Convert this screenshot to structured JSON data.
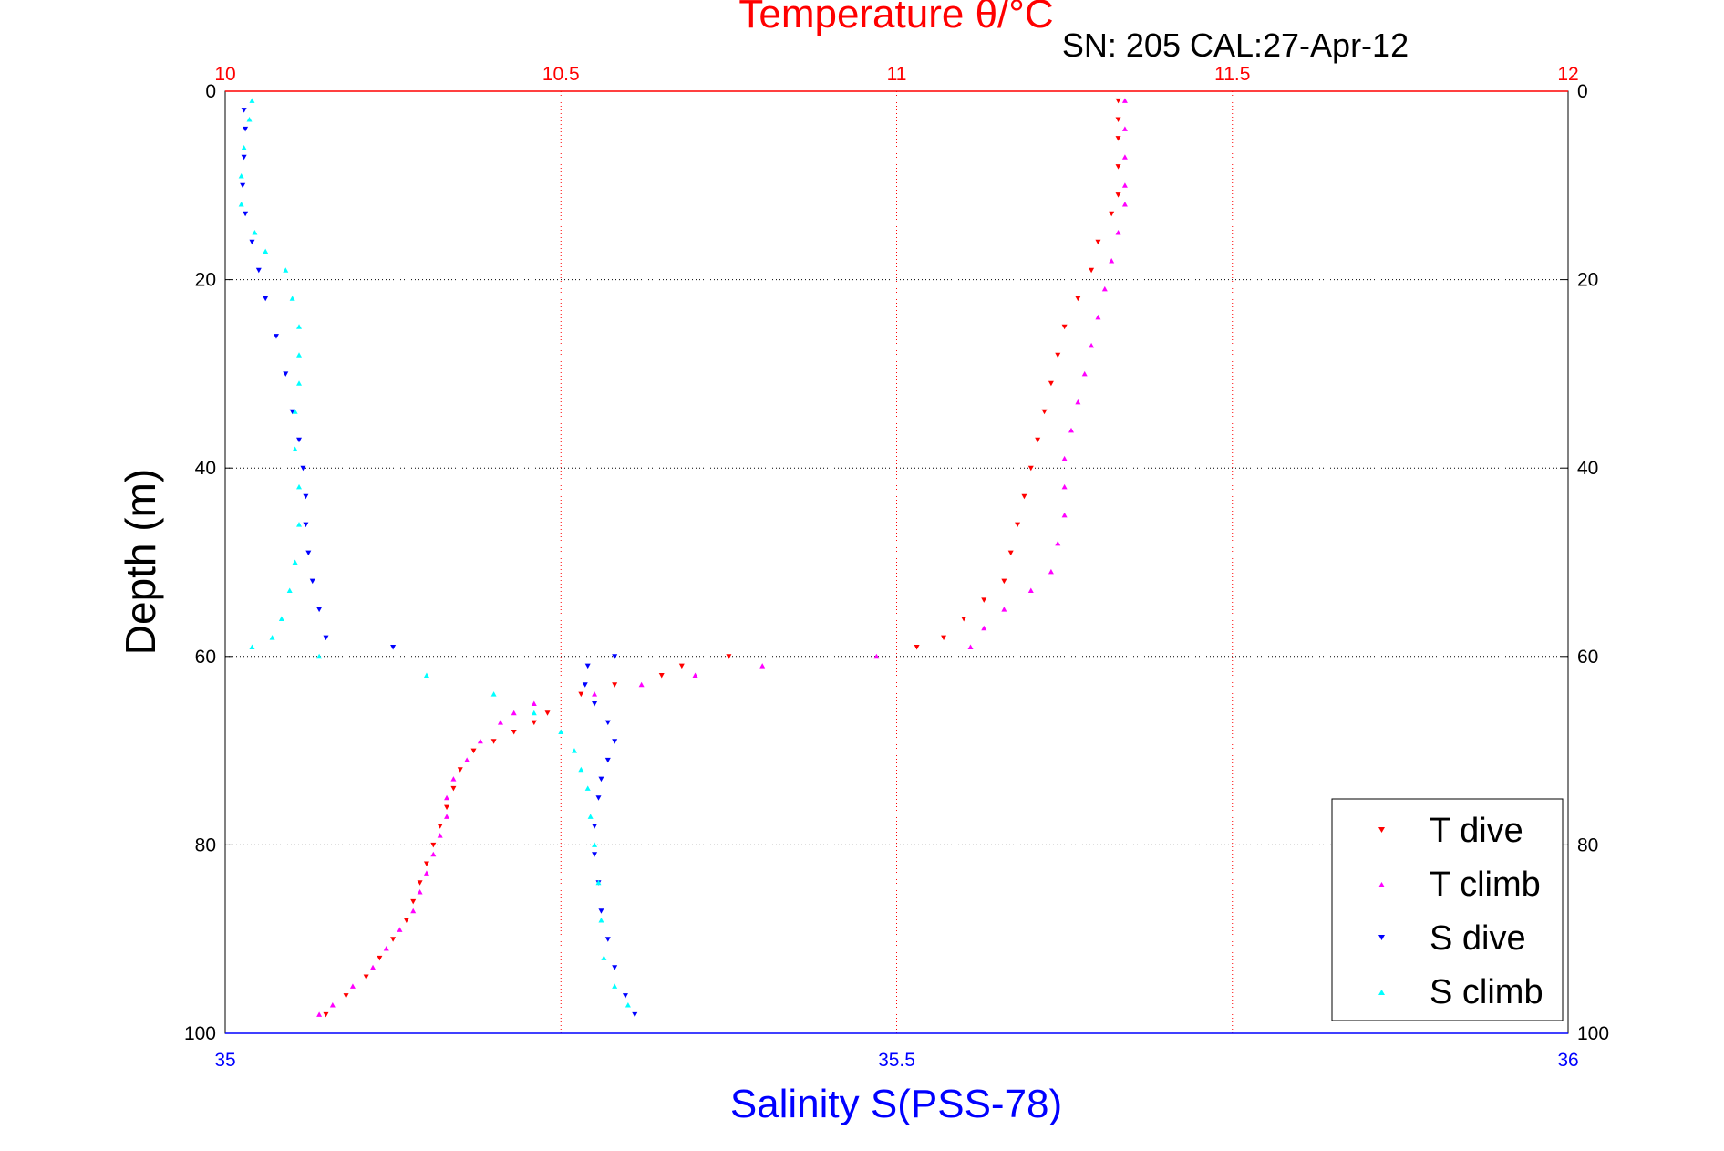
{
  "colors": {
    "temperature_axis": "#ff0000",
    "salinity_axis": "#0000ff",
    "t_dive": "#ff0000",
    "t_climb": "#ff00ff",
    "s_dive": "#0000ff",
    "s_climb": "#00ffff"
  },
  "chart_data": {
    "type": "scatter",
    "title": "Temperature θ/°C",
    "subtitle": "SN: 205  CAL:27-Apr-12",
    "ylabel": "Depth (m)",
    "top_xlabel": "Temperature θ/°C",
    "bottom_xlabel": "Salinity S(PSS-78)",
    "ylim": [
      0,
      100
    ],
    "y_reversed": true,
    "y_ticks": [
      0,
      20,
      40,
      60,
      80,
      100
    ],
    "top_axis": {
      "lim": [
        10,
        12
      ],
      "ticks": [
        "10",
        "10.5",
        "11",
        "11.5",
        "12"
      ]
    },
    "bottom_axis": {
      "lim": [
        35,
        36
      ],
      "ticks": [
        "35",
        "35.5",
        "36"
      ]
    },
    "grid": true,
    "legend_position": "bottom-right",
    "series": [
      {
        "name": "T dive",
        "axis": "temperature",
        "color": "#ff0000",
        "marker": "triangle-down",
        "points": [
          [
            11.33,
            1
          ],
          [
            11.33,
            3
          ],
          [
            11.33,
            5
          ],
          [
            11.33,
            8
          ],
          [
            11.33,
            11
          ],
          [
            11.32,
            13
          ],
          [
            11.3,
            16
          ],
          [
            11.29,
            19
          ],
          [
            11.27,
            22
          ],
          [
            11.25,
            25
          ],
          [
            11.24,
            28
          ],
          [
            11.23,
            31
          ],
          [
            11.22,
            34
          ],
          [
            11.21,
            37
          ],
          [
            11.2,
            40
          ],
          [
            11.19,
            43
          ],
          [
            11.18,
            46
          ],
          [
            11.17,
            49
          ],
          [
            11.16,
            52
          ],
          [
            11.13,
            54
          ],
          [
            11.1,
            56
          ],
          [
            11.07,
            58
          ],
          [
            11.03,
            59
          ],
          [
            10.75,
            60
          ],
          [
            10.68,
            61
          ],
          [
            10.65,
            62
          ],
          [
            10.58,
            63
          ],
          [
            10.53,
            64
          ],
          [
            10.48,
            66
          ],
          [
            10.46,
            67
          ],
          [
            10.43,
            68
          ],
          [
            10.4,
            69
          ],
          [
            10.37,
            70
          ],
          [
            10.35,
            72
          ],
          [
            10.34,
            74
          ],
          [
            10.33,
            76
          ],
          [
            10.32,
            78
          ],
          [
            10.31,
            80
          ],
          [
            10.3,
            82
          ],
          [
            10.29,
            84
          ],
          [
            10.28,
            86
          ],
          [
            10.27,
            88
          ],
          [
            10.25,
            90
          ],
          [
            10.23,
            92
          ],
          [
            10.21,
            94
          ],
          [
            10.18,
            96
          ],
          [
            10.15,
            98
          ]
        ]
      },
      {
        "name": "T climb",
        "axis": "temperature",
        "color": "#ff00ff",
        "marker": "triangle-up",
        "points": [
          [
            11.34,
            1
          ],
          [
            11.34,
            4
          ],
          [
            11.34,
            7
          ],
          [
            11.34,
            10
          ],
          [
            11.34,
            12
          ],
          [
            11.33,
            15
          ],
          [
            11.32,
            18
          ],
          [
            11.31,
            21
          ],
          [
            11.3,
            24
          ],
          [
            11.29,
            27
          ],
          [
            11.28,
            30
          ],
          [
            11.27,
            33
          ],
          [
            11.26,
            36
          ],
          [
            11.25,
            39
          ],
          [
            11.25,
            42
          ],
          [
            11.25,
            45
          ],
          [
            11.24,
            48
          ],
          [
            11.23,
            51
          ],
          [
            11.2,
            53
          ],
          [
            11.16,
            55
          ],
          [
            11.13,
            57
          ],
          [
            11.11,
            59
          ],
          [
            10.97,
            60
          ],
          [
            10.8,
            61
          ],
          [
            10.7,
            62
          ],
          [
            10.62,
            63
          ],
          [
            10.55,
            64
          ],
          [
            10.46,
            65
          ],
          [
            10.43,
            66
          ],
          [
            10.41,
            67
          ],
          [
            10.38,
            69
          ],
          [
            10.36,
            71
          ],
          [
            10.34,
            73
          ],
          [
            10.33,
            75
          ],
          [
            10.33,
            77
          ],
          [
            10.32,
            79
          ],
          [
            10.31,
            81
          ],
          [
            10.3,
            83
          ],
          [
            10.29,
            85
          ],
          [
            10.28,
            87
          ],
          [
            10.26,
            89
          ],
          [
            10.24,
            91
          ],
          [
            10.22,
            93
          ],
          [
            10.19,
            95
          ],
          [
            10.16,
            97
          ],
          [
            10.14,
            98
          ]
        ]
      },
      {
        "name": "S dive",
        "axis": "salinity",
        "color": "#0000ff",
        "marker": "triangle-down",
        "points": [
          [
            35.014,
            2
          ],
          [
            35.015,
            4
          ],
          [
            35.014,
            7
          ],
          [
            35.013,
            10
          ],
          [
            35.015,
            13
          ],
          [
            35.02,
            16
          ],
          [
            35.025,
            19
          ],
          [
            35.03,
            22
          ],
          [
            35.038,
            26
          ],
          [
            35.045,
            30
          ],
          [
            35.05,
            34
          ],
          [
            35.055,
            37
          ],
          [
            35.058,
            40
          ],
          [
            35.06,
            43
          ],
          [
            35.06,
            46
          ],
          [
            35.062,
            49
          ],
          [
            35.065,
            52
          ],
          [
            35.07,
            55
          ],
          [
            35.075,
            58
          ],
          [
            35.125,
            59
          ],
          [
            35.29,
            60
          ],
          [
            35.27,
            61
          ],
          [
            35.268,
            63
          ],
          [
            35.275,
            65
          ],
          [
            35.285,
            67
          ],
          [
            35.29,
            69
          ],
          [
            35.285,
            71
          ],
          [
            35.28,
            73
          ],
          [
            35.278,
            75
          ],
          [
            35.275,
            78
          ],
          [
            35.275,
            81
          ],
          [
            35.278,
            84
          ],
          [
            35.28,
            87
          ],
          [
            35.285,
            90
          ],
          [
            35.29,
            93
          ],
          [
            35.298,
            96
          ],
          [
            35.305,
            98
          ]
        ]
      },
      {
        "name": "S climb",
        "axis": "salinity",
        "color": "#00ffff",
        "marker": "triangle-up",
        "points": [
          [
            35.02,
            1
          ],
          [
            35.018,
            3
          ],
          [
            35.014,
            6
          ],
          [
            35.012,
            9
          ],
          [
            35.012,
            12
          ],
          [
            35.022,
            15
          ],
          [
            35.03,
            17
          ],
          [
            35.045,
            19
          ],
          [
            35.05,
            22
          ],
          [
            35.055,
            25
          ],
          [
            35.055,
            28
          ],
          [
            35.055,
            31
          ],
          [
            35.052,
            34
          ],
          [
            35.052,
            38
          ],
          [
            35.055,
            42
          ],
          [
            35.055,
            46
          ],
          [
            35.052,
            50
          ],
          [
            35.048,
            53
          ],
          [
            35.042,
            56
          ],
          [
            35.035,
            58
          ],
          [
            35.02,
            59
          ],
          [
            35.07,
            60
          ],
          [
            35.15,
            62
          ],
          [
            35.2,
            64
          ],
          [
            35.23,
            66
          ],
          [
            35.25,
            68
          ],
          [
            35.26,
            70
          ],
          [
            35.265,
            72
          ],
          [
            35.27,
            74
          ],
          [
            35.272,
            77
          ],
          [
            35.275,
            80
          ],
          [
            35.278,
            84
          ],
          [
            35.28,
            88
          ],
          [
            35.282,
            92
          ],
          [
            35.29,
            95
          ],
          [
            35.3,
            97
          ]
        ]
      }
    ]
  }
}
